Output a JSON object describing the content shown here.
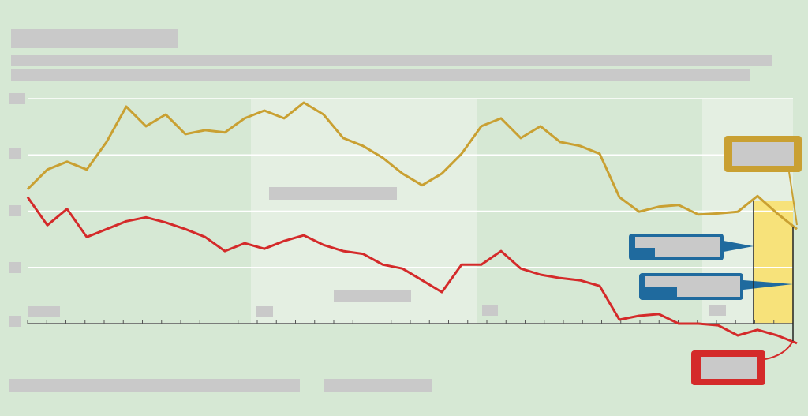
{
  "chart_data": {
    "type": "line",
    "series": [
      {
        "color": "#c9a032",
        "values": [
          2.39,
          2.74,
          2.88,
          2.74,
          3.23,
          3.86,
          3.51,
          3.72,
          3.37,
          3.44,
          3.4,
          3.65,
          3.79,
          3.65,
          3.93,
          3.72,
          3.3,
          3.16,
          2.95,
          2.67,
          2.46,
          2.67,
          3.02,
          3.51,
          3.65,
          3.3,
          3.51,
          3.23,
          3.16,
          3.02,
          2.25,
          1.99,
          2.08,
          2.11,
          1.94,
          1.96,
          1.99,
          2.27,
          1.96,
          1.68
        ]
      },
      {
        "color": "#d42a2a",
        "values": [
          2.25,
          1.75,
          2.04,
          1.54,
          1.68,
          1.82,
          1.89,
          1.8,
          1.68,
          1.54,
          1.29,
          1.43,
          1.33,
          1.47,
          1.57,
          1.4,
          1.29,
          1.24,
          1.05,
          0.98,
          0.77,
          0.56,
          1.05,
          1.05,
          1.29,
          0.98,
          0.87,
          0.81,
          0.77,
          0.67,
          0.07,
          0.14,
          0.17,
          0,
          0,
          -0.03,
          -0.21,
          -0.11,
          -0.21,
          -0.35
        ]
      }
    ],
    "ylim": [
      -0.4,
      4
    ],
    "yticks": [
      0,
      1,
      2,
      3,
      4
    ],
    "grid": true
  }
}
